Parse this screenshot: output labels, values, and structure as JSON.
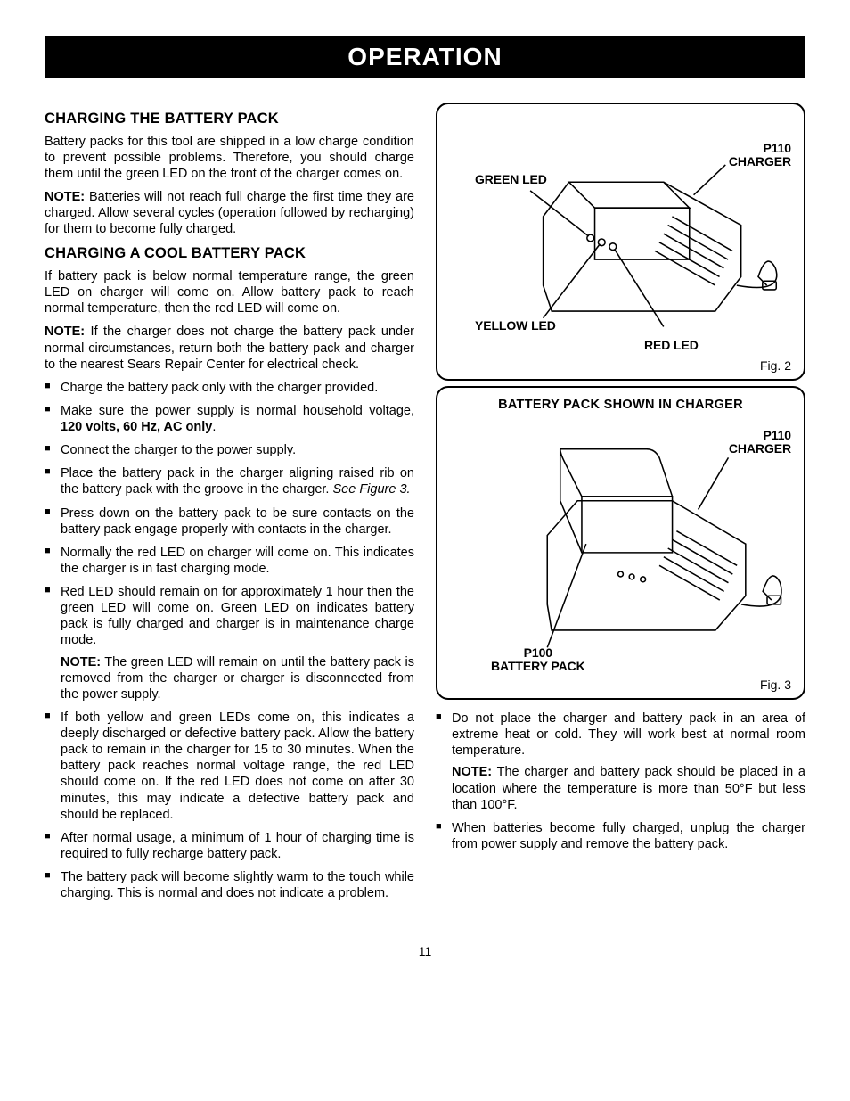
{
  "page": {
    "title": "OPERATION",
    "number": "11"
  },
  "left": {
    "h1": "CHARGING THE BATTERY PACK",
    "p1": "Battery packs for this tool are shipped in a low charge condition to prevent possible problems. Therefore, you should charge them until the green LED on the front of the charger comes on.",
    "note1_label": "NOTE:",
    "note1": " Batteries will not reach full charge the first time they are charged. Allow several cycles (operation followed by recharging) for them to become fully charged.",
    "h2": "CHARGING A COOL BATTERY PACK",
    "p2": "If battery pack is below normal temperature range, the green LED on charger will come on. Allow battery pack to reach normal temperature, then the red LED will come on.",
    "note2_label": "NOTE:",
    "note2": " If the charger does not charge the battery pack under normal circumstances, return both the battery pack and charger to the nearest Sears Repair Center for electrical check.",
    "bullets": [
      {
        "t": "Charge the battery pack only with the charger provided."
      },
      {
        "t": "Make sure the power supply is normal household voltage, ",
        "b": "120 volts, 60 Hz, AC only",
        "t2": "."
      },
      {
        "t": "Connect the charger to the power supply."
      },
      {
        "t": "Place the battery pack in the charger aligning raised rib on the battery pack with the groove in the charger. ",
        "i": "See Figure 3."
      },
      {
        "t": "Press down on the battery pack to be sure contacts on the battery pack engage properly with contacts in the charger."
      },
      {
        "t": "Normally the red LED on charger will come on. This indicates the charger is in fast charging mode."
      },
      {
        "t": "Red LED should remain on for approximately 1 hour then the green LED will come on. Green LED on indicates battery pack is fully charged and charger is in maintenance charge mode.",
        "sub_label": "NOTE:",
        "sub": " The green LED will remain on until the battery pack is removed from the charger or charger is disconnected from the power supply."
      },
      {
        "t": "If both yellow and green LEDs come on, this indicates a deeply discharged or defective battery pack. Allow the battery pack to remain in the charger for 15 to 30 minutes. When the battery pack reaches normal voltage range, the red LED should come on. If the red LED does not come on after 30 minutes, this may indicate a defective battery pack and should be replaced."
      },
      {
        "t": "After normal usage, a minimum of 1 hour of charging time is required to fully recharge battery pack."
      },
      {
        "t": "The battery pack will become slightly warm to the touch while charging. This is normal and does not indicate a problem."
      }
    ]
  },
  "fig2": {
    "green_led": "GREEN LED",
    "yellow_led": "YELLOW LED",
    "red_led": "RED LED",
    "charger": "P110\nCHARGER",
    "caption": "Fig. 2"
  },
  "fig3": {
    "title": "BATTERY PACK SHOWN IN CHARGER",
    "charger": "P110\nCHARGER",
    "battery": "P100\nBATTERY PACK",
    "caption": "Fig. 3"
  },
  "right": {
    "bullets2": [
      {
        "t": "Do not place the charger and battery pack in an area of extreme heat or cold. They will work best at normal room temperature.",
        "sub_label": "NOTE:",
        "sub": " The charger and battery pack should be placed in a location where the temperature is more than 50°F but less than 100°F."
      },
      {
        "t": "When batteries become fully charged, unplug the charger from power supply and remove the battery pack."
      }
    ]
  },
  "style": {
    "title_bg": "#000000",
    "title_fg": "#ffffff",
    "page_bg": "#ffffff",
    "text_color": "#000000",
    "border_radius": 14,
    "border_width": 2.5
  }
}
